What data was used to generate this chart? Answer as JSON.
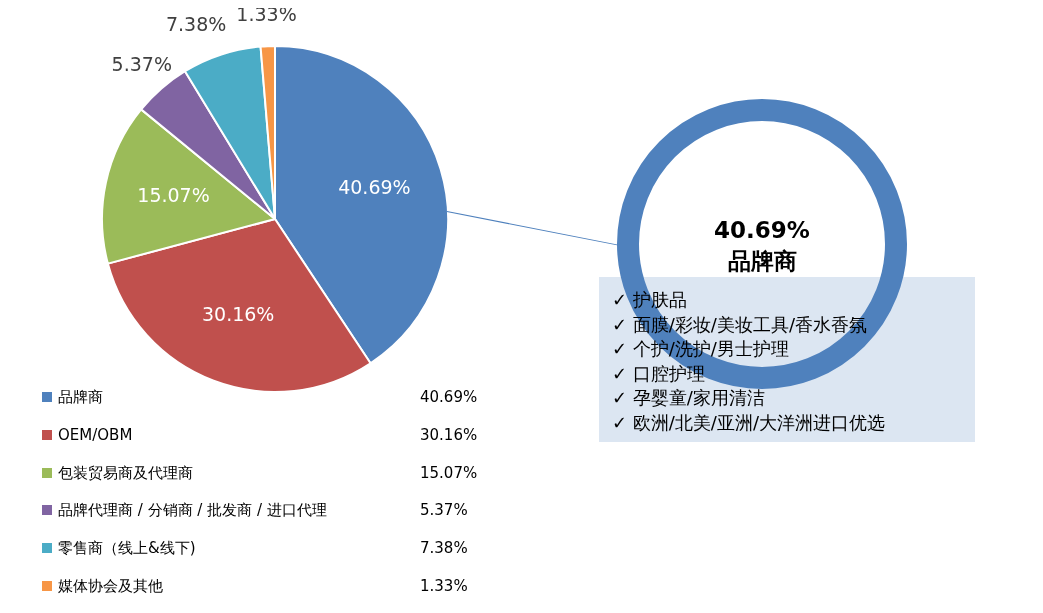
{
  "chart_data": {
    "type": "pie",
    "categories": [
      "品牌商",
      "OEM/OBM",
      "包装贸易商及代理商",
      "品牌代理商 / 分销商 / 批发商 / 进口代理",
      "零售商（线上&线下)",
      "媒体协会及其他"
    ],
    "values": [
      40.69,
      30.16,
      15.07,
      5.37,
      7.38,
      1.33
    ],
    "value_labels": [
      "40.69%",
      "30.16%",
      "15.07%",
      "5.37%",
      "7.38%",
      "1.33%"
    ],
    "legend": "bottom left",
    "colors": [
      "#4f81bd",
      "#c0504d",
      "#9bbb59",
      "#8064a2",
      "#4bacc6",
      "#f79646"
    ],
    "annotations": [
      "40.69%",
      "品牌商",
      "✓ 护肤品",
      "✓ 面膜/彩妆/美妆工具/香水香氛",
      "✓ 个护/洗护/男士护理",
      "✓ 口腔护理",
      "✓ 孕婴童/家用清洁",
      "✓ 欧洲/北美/亚洲/大洋洲进口优选"
    ]
  }
}
